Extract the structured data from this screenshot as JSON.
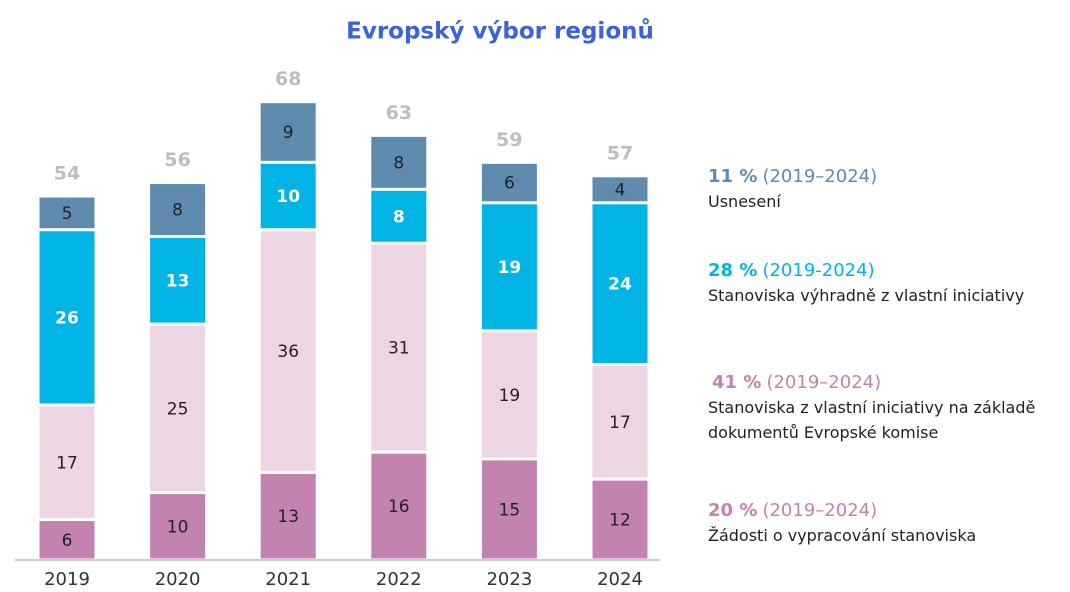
{
  "chart_data": {
    "type": "stacked_bar",
    "title": "Evropský výbor regionů",
    "categories": [
      "2019",
      "2020",
      "2021",
      "2022",
      "2023",
      "2024"
    ],
    "totals": [
      54,
      56,
      68,
      63,
      59,
      57
    ],
    "series": [
      {
        "name": "Žádosti o vypracování stanoviska",
        "color": "#c283ae",
        "label_color": "#222222",
        "share_label": "20 %",
        "period": "(2019–2024)",
        "values": [
          6,
          10,
          13,
          16,
          15,
          12
        ]
      },
      {
        "name": "Stanoviska z vlastní iniciativy na základě dokumentů Evropské komise",
        "color": "#ecd6e4",
        "label_color": "#222222",
        "share_label": "41 %",
        "period": "(2019–2024)",
        "values": [
          17,
          25,
          36,
          31,
          19,
          17
        ]
      },
      {
        "name": "Stanoviska výhradně z vlastní iniciativy",
        "color": "#00b4e6",
        "label_color": "#ffffff",
        "share_label": "28 %",
        "period": "(2019-2024)",
        "values": [
          26,
          13,
          10,
          8,
          19,
          24
        ]
      },
      {
        "name": "Usnesení",
        "color": "#5f8cae",
        "label_color": "#222222",
        "share_label": "11 %",
        "period": "(2019–2024)",
        "values": [
          5,
          8,
          9,
          8,
          6,
          4
        ]
      }
    ]
  }
}
